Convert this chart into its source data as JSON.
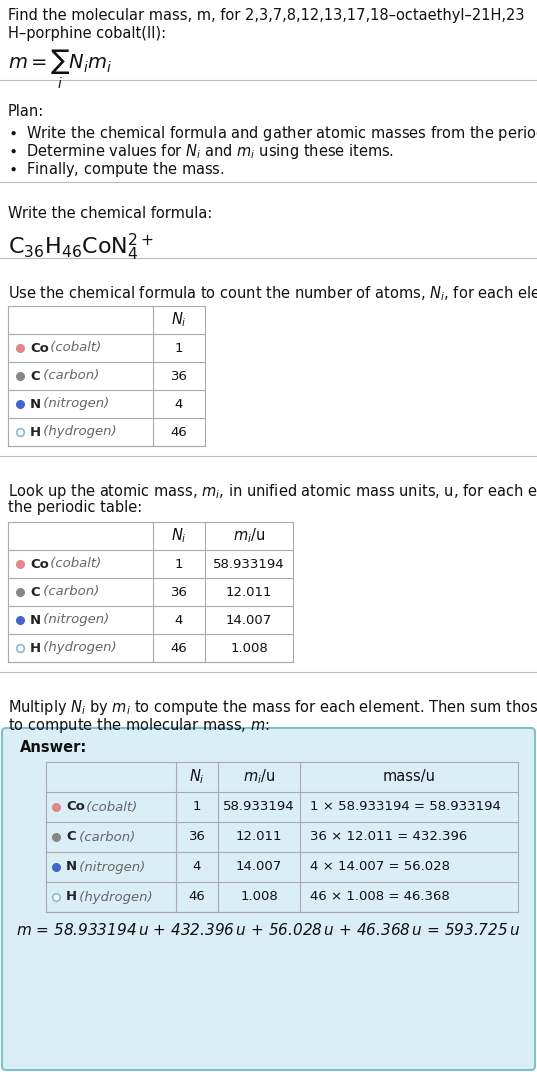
{
  "title_line1": "Find the molecular mass, m, for 2,3,7,8,12,13,17,18–octaethyl–21H,23",
  "title_line2": "H–porphine cobalt(II):",
  "bg_color": "#ffffff",
  "answer_bg": "#daeef5",
  "answer_border": "#7fbfcf",
  "table_border": "#aaaaaa",
  "text_color": "#111111",
  "sep_color": "#bbbbbb",
  "elements": [
    {
      "symbol": "Co",
      "name": "cobalt",
      "Ni": "1",
      "mi": "58.933194",
      "mass": "1 × 58.933194 = 58.933194",
      "dot_color": "#e08888",
      "filled": true
    },
    {
      "symbol": "C",
      "name": "carbon",
      "Ni": "36",
      "mi": "12.011",
      "mass": "36 × 12.011 = 432.396",
      "dot_color": "#888888",
      "filled": true
    },
    {
      "symbol": "N",
      "name": "nitrogen",
      "Ni": "4",
      "mi": "14.007",
      "mass": "4 × 14.007 = 56.028",
      "dot_color": "#4466cc",
      "filled": true
    },
    {
      "symbol": "H",
      "name": "hydrogen",
      "Ni": "46",
      "mi": "1.008",
      "mass": "46 × 1.008 = 46.368",
      "dot_color": "#88bbcc",
      "filled": false
    }
  ],
  "final_eq": "m = 58.933194 u + 432.396 u + 56.028 u + 46.368 u = 593.725 u"
}
